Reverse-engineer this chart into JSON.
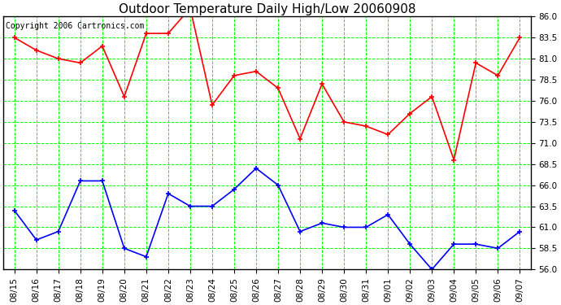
{
  "title": "Outdoor Temperature Daily High/Low 20060908",
  "copyright": "Copyright 2006 Cartronics.com",
  "x_labels": [
    "08/15",
    "08/16",
    "08/17",
    "08/18",
    "08/19",
    "08/20",
    "08/21",
    "08/22",
    "08/23",
    "08/24",
    "08/25",
    "08/26",
    "08/27",
    "08/28",
    "08/29",
    "08/30",
    "08/31",
    "09/01",
    "09/02",
    "09/03",
    "09/04",
    "09/05",
    "09/06",
    "09/07"
  ],
  "high_vals": [
    83.5,
    82.0,
    81.0,
    80.5,
    82.5,
    76.5,
    84.0,
    84.0,
    87.0,
    75.5,
    79.0,
    79.5,
    77.5,
    71.5,
    78.0,
    73.5,
    73.0,
    72.0,
    74.5,
    76.5,
    69.0,
    80.5,
    79.0,
    83.5
  ],
  "low_vals": [
    63.0,
    59.5,
    60.5,
    66.5,
    66.5,
    58.5,
    57.5,
    65.0,
    63.5,
    63.5,
    65.5,
    68.0,
    66.0,
    60.5,
    61.5,
    61.0,
    61.0,
    62.5,
    59.0,
    56.0,
    59.0,
    59.0,
    58.5,
    60.5
  ],
  "high_color": "#ff0000",
  "low_color": "#0000ff",
  "bg_color": "#ffffff",
  "grid_color": "#00ff00",
  "border_color": "#000000",
  "ylim": [
    56.0,
    86.0
  ],
  "yticks": [
    56.0,
    58.5,
    61.0,
    63.5,
    66.0,
    68.5,
    71.0,
    73.5,
    76.0,
    78.5,
    81.0,
    83.5,
    86.0
  ],
  "title_fontsize": 11,
  "copyright_fontsize": 7,
  "tick_fontsize": 7.5,
  "marker_size": 4,
  "line_width": 1.2
}
